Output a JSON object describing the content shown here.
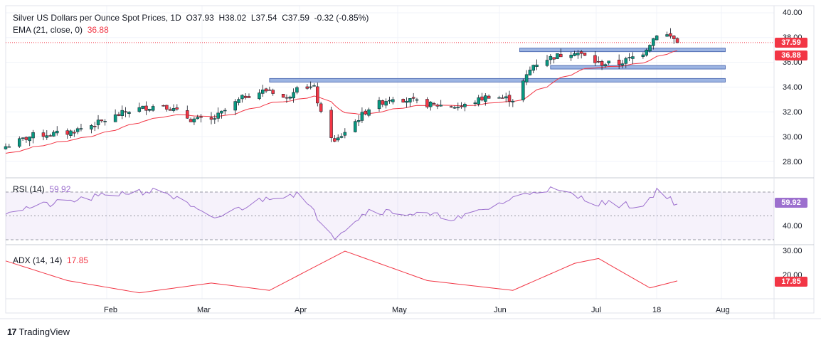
{
  "header": {
    "title": "Silver US Dollars per Ounce Spot Prices, 1D",
    "open": "O37.93",
    "high": "H38.02",
    "low": "L37.54",
    "close": "C37.59",
    "change": "-0.32 (-0.85%)",
    "ema_label": "EMA (21, close, 0)",
    "ema_value": "36.88"
  },
  "badges": {
    "price": "37.59",
    "ema": "36.88",
    "rsi": "59.92",
    "adx": "17.85"
  },
  "rsi_pane": {
    "label": "RSI (14)",
    "value": "59.92",
    "ticks": [
      "40.00"
    ]
  },
  "adx_pane": {
    "label": "ADX (14, 14)",
    "value": "17.85",
    "ticks": [
      "30.00",
      "20.00"
    ]
  },
  "price_axis": [
    "40.00",
    "38.00",
    "36.00",
    "34.00",
    "32.00",
    "30.00",
    "28.00"
  ],
  "time_axis": [
    "Feb",
    "Mar",
    "Apr",
    "May",
    "Jun",
    "Jul",
    "18",
    "Aug"
  ],
  "brand": "TradingView",
  "colors": {
    "up": "#089981",
    "down": "#f23645",
    "ema": "#f23645",
    "rsi": "#9c6fce",
    "adx": "#f23645",
    "zone": "#7b9bd8",
    "price_badge": "#f23645"
  },
  "chart_data": {
    "type": "candlestick",
    "title": "Silver US Dollars per Ounce Spot Prices, 1D",
    "price_range": [
      27.0,
      40.2
    ],
    "time_range": [
      "2025-01-02",
      "2025-08-08"
    ],
    "last": {
      "open": 37.93,
      "high": 38.02,
      "low": 37.54,
      "close": 37.59,
      "change": -0.32,
      "change_pct": -0.85
    },
    "ema_21_last": 36.88,
    "resistance_zones": [
      {
        "from": "2025-03-20",
        "to": "2025-07-31",
        "level": 34.55
      },
      {
        "from": "2025-06-10",
        "to": "2025-07-31",
        "level": 35.6
      },
      {
        "from": "2025-06-01",
        "to": "2025-07-31",
        "level": 37.0
      }
    ],
    "close_anchors": [
      [
        "2025-01-02",
        29.2
      ],
      [
        "2025-01-10",
        30.1
      ],
      [
        "2025-01-20",
        30.3
      ],
      [
        "2025-01-30",
        31.2
      ],
      [
        "2025-02-07",
        32.1
      ],
      [
        "2025-02-17",
        32.6
      ],
      [
        "2025-02-25",
        31.4
      ],
      [
        "2025-03-03",
        31.3
      ],
      [
        "2025-03-13",
        33.3
      ],
      [
        "2025-03-20",
        33.8
      ],
      [
        "2025-03-25",
        33.0
      ],
      [
        "2025-03-28",
        34.2
      ],
      [
        "2025-04-02",
        33.9
      ],
      [
        "2025-04-04",
        31.8
      ],
      [
        "2025-04-08",
        29.5
      ],
      [
        "2025-04-11",
        30.4
      ],
      [
        "2025-04-18",
        32.3
      ],
      [
        "2025-04-25",
        33.2
      ],
      [
        "2025-05-05",
        32.6
      ],
      [
        "2025-05-15",
        32.4
      ],
      [
        "2025-05-23",
        33.3
      ],
      [
        "2025-05-30",
        33.0
      ],
      [
        "2025-06-05",
        35.8
      ],
      [
        "2025-06-09",
        36.3
      ],
      [
        "2025-06-17",
        36.9
      ],
      [
        "2025-06-24",
        35.9
      ],
      [
        "2025-06-30",
        35.9
      ],
      [
        "2025-07-07",
        36.8
      ],
      [
        "2025-07-11",
        38.3
      ],
      [
        "2025-07-14",
        38.2
      ],
      [
        "2025-07-16",
        37.9
      ],
      [
        "2025-07-17",
        37.59
      ]
    ],
    "rsi_14": {
      "range": [
        26,
        82
      ],
      "upper": 70,
      "mid": 50,
      "lower": 30,
      "last": 59.92,
      "anchors": [
        [
          "2025-01-02",
          54
        ],
        [
          "2025-01-20",
          62
        ],
        [
          "2025-02-07",
          70
        ],
        [
          "2025-02-17",
          71
        ],
        [
          "2025-03-03",
          47
        ],
        [
          "2025-03-20",
          66
        ],
        [
          "2025-03-28",
          69
        ],
        [
          "2025-04-08",
          33
        ],
        [
          "2025-04-18",
          55
        ],
        [
          "2025-05-15",
          48
        ],
        [
          "2025-06-05",
          71
        ],
        [
          "2025-06-09",
          73
        ],
        [
          "2025-06-24",
          61
        ],
        [
          "2025-07-07",
          58
        ],
        [
          "2025-07-11",
          72
        ],
        [
          "2025-07-17",
          59.92
        ]
      ]
    },
    "adx_14": {
      "range": [
        10,
        30
      ],
      "last": 17.85,
      "anchors": [
        [
          "2025-01-02",
          26
        ],
        [
          "2025-01-20",
          18
        ],
        [
          "2025-02-10",
          13
        ],
        [
          "2025-03-03",
          17
        ],
        [
          "2025-03-20",
          14
        ],
        [
          "2025-04-11",
          30
        ],
        [
          "2025-05-05",
          18
        ],
        [
          "2025-05-30",
          14
        ],
        [
          "2025-06-17",
          25
        ],
        [
          "2025-06-24",
          27
        ],
        [
          "2025-07-09",
          15
        ],
        [
          "2025-07-17",
          17.85
        ]
      ]
    }
  }
}
